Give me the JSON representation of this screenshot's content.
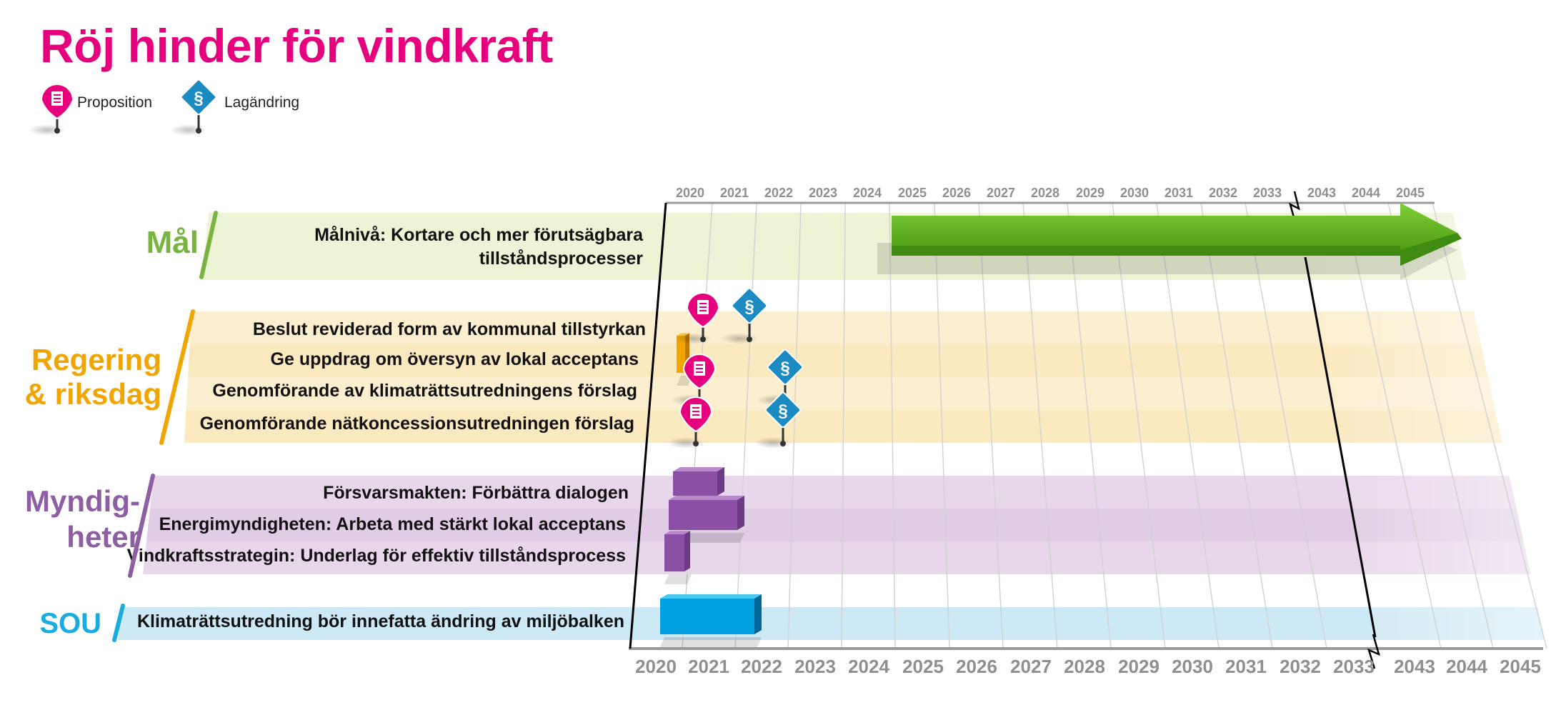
{
  "title": "Röj hinder för vindkraft",
  "legend": [
    {
      "label": "Proposition",
      "icon": "proposition-pin-icon",
      "color": "#e6007e"
    },
    {
      "label": "Lagändring",
      "icon": "lagandring-pin-icon",
      "color": "#1b8bc2",
      "symbol": "§"
    }
  ],
  "years": [
    "2020",
    "2021",
    "2022",
    "2023",
    "2024",
    "2025",
    "2026",
    "2027",
    "2028",
    "2029",
    "2030",
    "2031",
    "2032",
    "2033",
    "2043",
    "2044",
    "2045"
  ],
  "highlight_year": "2045",
  "categories": [
    {
      "id": "mal",
      "label": [
        "Mål"
      ],
      "color": "#79b443",
      "band": "#edf3d5",
      "rows": [
        {
          "label": "Målnivå: Kortare och mer förutsägbara",
          "label2": "tillståndsprocesser"
        }
      ]
    },
    {
      "id": "regering",
      "label": [
        "Regering",
        "& riksdag"
      ],
      "color": "#f0a500",
      "band": "#fcefd0",
      "rows": [
        {
          "label": "Beslut reviderad form av kommunal tillstyrkan"
        },
        {
          "label": "Ge uppdrag om översyn av lokal acceptans"
        },
        {
          "label": "Genomförande av klimaträttsutredningens förslag"
        },
        {
          "label": "Genomförande nätkoncessionsutredningen förslag"
        }
      ]
    },
    {
      "id": "myndigheter",
      "label": [
        "Myndig-",
        "heter"
      ],
      "color": "#8e5ea2",
      "band": "#e8d6ea",
      "rows": [
        {
          "label": "Försvarsmakten: Förbättra dialogen"
        },
        {
          "label": "Energimyndigheten: Arbeta med stärkt lokal acceptans"
        },
        {
          "label": "Vindkraftsstrategin: Underlag för effektiv tillståndsprocess"
        }
      ]
    },
    {
      "id": "sou",
      "label": [
        "SOU"
      ],
      "color": "#1aabe0",
      "band": "#cde9f5",
      "rows": [
        {
          "label": "Klimaträttsutredning bör innefatta ändring av miljöbalken"
        }
      ]
    }
  ],
  "colors": {
    "green": "#5db51b",
    "orange": "#f0a500",
    "purple": "#8b4fa6",
    "blue": "#009fdf",
    "pink": "#e6007e"
  }
}
